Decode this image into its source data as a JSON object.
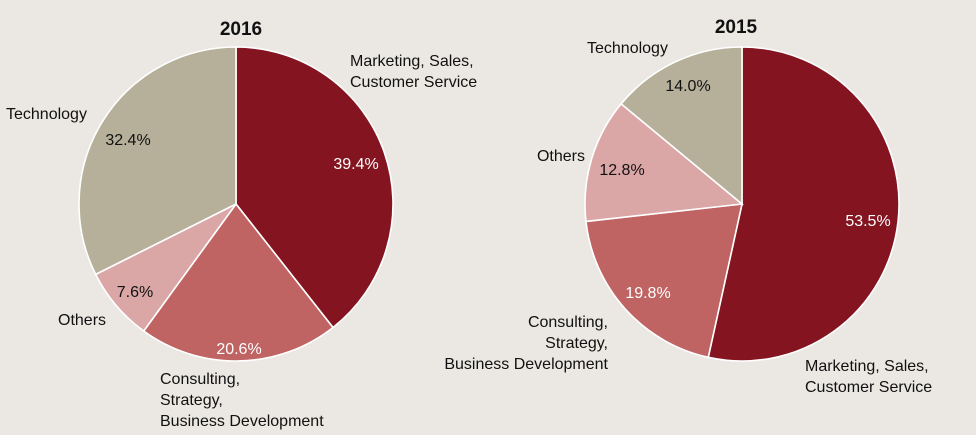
{
  "chart_data": [
    {
      "type": "pie",
      "title": "2016",
      "start_angle": "12 o'clock",
      "direction": "clockwise",
      "slices": [
        {
          "label": "Marketing, Sales, Customer Service",
          "label_lines": [
            "Marketing, Sales,",
            "Customer Service"
          ],
          "value": 39.4,
          "value_label": "39.4%",
          "color": "#831420",
          "value_color": "#ffffff"
        },
        {
          "label": "Consulting, Strategy, Business Development",
          "label_lines": [
            "Consulting,",
            "Strategy,",
            "Business Development"
          ],
          "value": 20.6,
          "value_label": "20.6%",
          "color": "#bf6363",
          "value_color": "#ffffff"
        },
        {
          "label": "Others",
          "label_lines": [
            "Others"
          ],
          "value": 7.6,
          "value_label": "7.6%",
          "color": "#dba6a6",
          "value_color": "#111111"
        },
        {
          "label": "Technology",
          "label_lines": [
            "Technology"
          ],
          "value": 32.4,
          "value_label": "32.4%",
          "color": "#b6b09b",
          "value_color": "#111111"
        }
      ]
    },
    {
      "type": "pie",
      "title": "2015",
      "start_angle": "12 o'clock",
      "direction": "clockwise",
      "slices": [
        {
          "label": "Marketing, Sales, Customer Service",
          "label_lines": [
            "Marketing, Sales,",
            "Customer Service"
          ],
          "value": 53.5,
          "value_label": "53.5%",
          "color": "#831420",
          "value_color": "#ffffff"
        },
        {
          "label": "Consulting, Strategy, Business Development",
          "label_lines": [
            "Consulting,",
            "Strategy,",
            "Business Development"
          ],
          "value": 19.8,
          "value_label": "19.8%",
          "color": "#bf6363",
          "value_color": "#ffffff"
        },
        {
          "label": "Others",
          "label_lines": [
            "Others"
          ],
          "value": 12.8,
          "value_label": "12.8%",
          "color": "#dba6a6",
          "value_color": "#111111"
        },
        {
          "label": "Technology",
          "label_lines": [
            "Technology"
          ],
          "value": 14.0,
          "value_label": "14.0%",
          "color": "#b6b09b",
          "value_color": "#111111"
        }
      ]
    }
  ],
  "colors": {
    "background": "#ebe8e3",
    "separator": "#ffffff"
  }
}
